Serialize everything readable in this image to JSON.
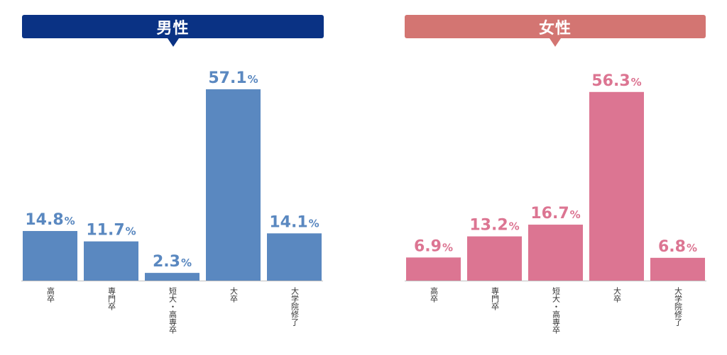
{
  "colors": {
    "male_header": "#0a3284",
    "female_header": "#d37572",
    "male_bar": "#5a88c0",
    "female_bar": "#dc7592"
  },
  "male": {
    "title": "男性"
  },
  "female": {
    "title": "女性"
  },
  "chart_data": [
    {
      "type": "bar",
      "title": "男性",
      "categories": [
        "高卒",
        "専門卒",
        "短大・高専卒",
        "大卒",
        "大学院修了"
      ],
      "values": [
        14.8,
        11.7,
        2.3,
        57.1,
        14.1
      ],
      "value_suffix": "%",
      "ylim": [
        0,
        57.1
      ],
      "grid": false
    },
    {
      "type": "bar",
      "title": "女性",
      "categories": [
        "高卒",
        "専門卒",
        "短大・高専卒",
        "大卒",
        "大学院修了"
      ],
      "values": [
        6.9,
        13.2,
        16.7,
        56.3,
        6.8
      ],
      "value_suffix": "%",
      "ylim": [
        0,
        57.1
      ],
      "grid": false
    }
  ]
}
